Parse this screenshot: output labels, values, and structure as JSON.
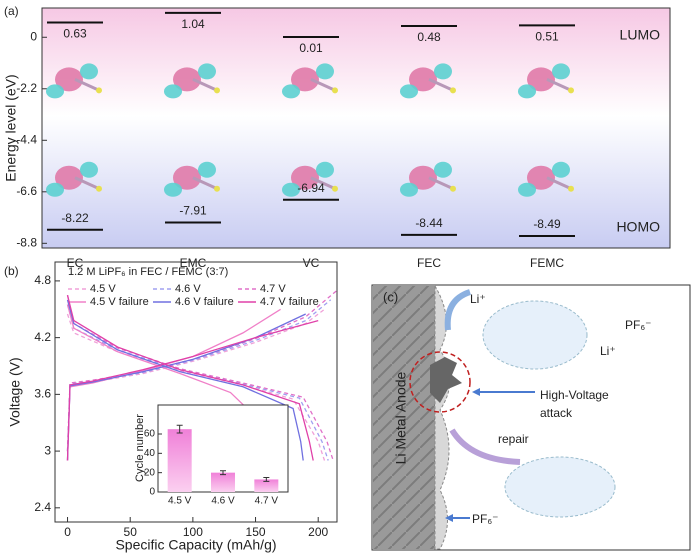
{
  "chart_data": [
    {
      "type": "level",
      "panel_label": "(a)",
      "ylabel": "Energy level (eV)",
      "categories": [
        "EC",
        "EMC",
        "VC",
        "FEC",
        "FEMC"
      ],
      "series": [
        {
          "name": "LUMO",
          "color": "#111111",
          "values": [
            0.63,
            1.04,
            0.01,
            0.48,
            0.51
          ]
        },
        {
          "name": "HOMO",
          "color": "#111111",
          "values": [
            -8.22,
            -7.91,
            -6.94,
            -8.44,
            -8.49
          ]
        }
      ],
      "ylim": [
        -9.0,
        1.25
      ],
      "yticks": [
        0,
        -2.2,
        -4.4,
        -6.6,
        -8.8
      ]
    },
    {
      "type": "line",
      "panel_label": "(b)",
      "title": "1.2 M LiPF₆ in FEC / FEMC (3:7)",
      "xlabel": "Specific Capacity (mAh/g)",
      "ylabel": "Voltage (V)",
      "xlim": [
        -10,
        215
      ],
      "xticks": [
        0,
        50,
        100,
        150,
        200
      ],
      "ylim": [
        2.25,
        5.0
      ],
      "yticks": [
        2.4,
        3.0,
        3.6,
        4.2,
        4.8
      ],
      "series": [
        {
          "name": "4.5 V",
          "color": "#f0a0d8",
          "line_style": "dashed",
          "x": [
            0,
            2,
            20,
            60,
            100,
            150,
            190,
            205,
            0,
            0,
            5,
            40,
            90,
            140,
            180,
            200,
            205
          ],
          "values": [
            3.0,
            3.7,
            3.73,
            3.82,
            3.95,
            4.15,
            4.35,
            4.5,
            null,
            4.45,
            4.25,
            4.05,
            3.85,
            3.7,
            3.55,
            3.1,
            2.9
          ]
        },
        {
          "name": "4.6 V",
          "color": "#a0a0f0",
          "line_style": "dashed",
          "x": [
            0,
            2,
            20,
            60,
            100,
            150,
            190,
            210,
            0,
            0,
            5,
            40,
            90,
            140,
            185,
            203,
            208
          ],
          "values": [
            3.0,
            3.71,
            3.74,
            3.83,
            3.96,
            4.17,
            4.38,
            4.6,
            null,
            4.55,
            4.3,
            4.07,
            3.86,
            3.71,
            3.56,
            3.1,
            2.9
          ]
        },
        {
          "name": "4.7 V",
          "color": "#e070c8",
          "line_style": "dashed",
          "x": [
            0,
            2,
            20,
            60,
            100,
            150,
            190,
            215,
            0,
            0,
            5,
            40,
            90,
            140,
            188,
            207,
            212
          ],
          "values": [
            3.0,
            3.72,
            3.75,
            3.84,
            3.97,
            4.19,
            4.42,
            4.7,
            null,
            4.65,
            4.35,
            4.09,
            3.87,
            3.72,
            3.57,
            3.1,
            2.9
          ]
        },
        {
          "name": "4.5 V failure",
          "color": "#f080c8",
          "line_style": "solid",
          "x": [
            0,
            2,
            20,
            60,
            100,
            140,
            170,
            0,
            0,
            5,
            40,
            90,
            130,
            155,
            160,
            163
          ],
          "values": [
            2.9,
            3.68,
            3.72,
            3.85,
            4.0,
            4.25,
            4.5,
            null,
            4.55,
            4.3,
            4.05,
            3.82,
            3.62,
            3.3,
            3.0,
            2.85
          ]
        },
        {
          "name": "4.6 V failure",
          "color": "#7070e0",
          "line_style": "solid",
          "x": [
            0,
            2,
            20,
            60,
            100,
            150,
            190,
            0,
            0,
            5,
            40,
            90,
            140,
            180,
            186,
            188
          ],
          "values": [
            2.9,
            3.69,
            3.73,
            3.84,
            3.97,
            4.2,
            4.45,
            null,
            4.6,
            4.35,
            4.07,
            3.84,
            3.68,
            3.45,
            3.1,
            2.9
          ]
        },
        {
          "name": "4.7 V failure",
          "color": "#e040a8",
          "line_style": "solid",
          "x": [
            0,
            2,
            20,
            60,
            100,
            150,
            200,
            0,
            0,
            5,
            40,
            90,
            140,
            185,
            193,
            196
          ],
          "values": [
            2.9,
            3.7,
            3.74,
            3.86,
            4.0,
            4.2,
            4.38,
            null,
            4.65,
            4.38,
            4.1,
            3.86,
            3.7,
            3.5,
            3.1,
            2.9
          ]
        }
      ]
    },
    {
      "type": "bar",
      "ylabel": "Cycle number",
      "categories": [
        "4.5 V",
        "4.6 V",
        "4.7 V"
      ],
      "values": [
        65,
        20,
        13
      ],
      "errors": [
        4,
        2,
        2
      ],
      "color": "#f4a0e0",
      "ylim": [
        0,
        90
      ],
      "yticks": [
        0,
        20,
        40,
        60
      ]
    }
  ],
  "diagram": {
    "panel_label": "(c)",
    "anode": "Li Metal Anode",
    "ions": [
      "Li⁺",
      "Li⁺"
    ],
    "anions": [
      "PF₆⁻",
      "PF₆⁻"
    ],
    "attack": [
      "High-Voltage",
      "attack"
    ],
    "repair": "repair"
  }
}
